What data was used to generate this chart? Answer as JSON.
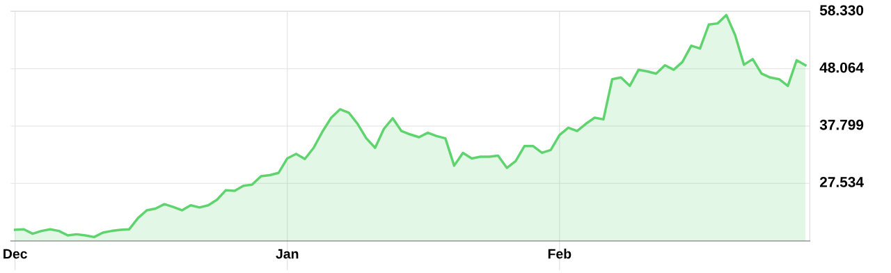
{
  "chart_data": {
    "type": "area",
    "categories": [
      "Dec",
      null,
      null,
      null,
      null,
      null,
      null,
      null,
      null,
      null,
      null,
      null,
      null,
      null,
      null,
      null,
      null,
      null,
      null,
      null,
      null,
      null,
      null,
      null,
      null,
      null,
      null,
      null,
      null,
      null,
      null,
      "Jan",
      null,
      null,
      null,
      null,
      null,
      null,
      null,
      null,
      null,
      null,
      null,
      null,
      null,
      null,
      null,
      null,
      null,
      null,
      null,
      null,
      null,
      null,
      null,
      null,
      null,
      null,
      null,
      null,
      null,
      null,
      "Feb",
      null,
      null,
      null,
      null,
      null,
      null,
      null,
      null,
      null,
      null,
      null,
      null,
      null,
      null,
      null,
      null,
      null,
      null,
      null,
      null,
      null,
      null,
      null,
      null,
      null,
      null,
      null,
      null
    ],
    "series": [
      {
        "color": "#5fd46e",
        "values": [
          19.2,
          19.3,
          18.5,
          19.0,
          19.3,
          19.0,
          18.2,
          18.4,
          18.2,
          17.9,
          18.7,
          19.0,
          19.2,
          19.3,
          21.3,
          22.7,
          23.0,
          23.8,
          23.3,
          22.7,
          23.6,
          23.2,
          23.6,
          24.6,
          26.3,
          26.2,
          27.1,
          27.3,
          28.8,
          29.0,
          29.4,
          32.0,
          32.8,
          31.9,
          33.9,
          36.8,
          39.3,
          40.8,
          40.2,
          38.2,
          35.6,
          33.9,
          37.3,
          39.2,
          36.9,
          36.3,
          35.8,
          36.6,
          36.0,
          35.6,
          30.7,
          33.0,
          32.0,
          32.3,
          32.3,
          32.5,
          30.3,
          31.5,
          34.2,
          34.2,
          33.0,
          33.5,
          36.2,
          37.5,
          36.9,
          38.2,
          39.3,
          39.0,
          46.2,
          46.5,
          45.0,
          47.9,
          47.6,
          47.2,
          48.7,
          47.9,
          49.3,
          52.2,
          51.7,
          56.0,
          56.2,
          57.7,
          54.1,
          48.8,
          49.8,
          47.2,
          46.5,
          46.2,
          45.0,
          49.6,
          48.7
        ]
      }
    ],
    "ylim": [
      17.2,
      58.4
    ],
    "yticks": [
      {
        "value": 27.534,
        "label": "27.534"
      },
      {
        "value": 37.799,
        "label": "37.799"
      },
      {
        "value": 48.064,
        "label": "48.064"
      },
      {
        "value": 58.33,
        "label": "58.330"
      }
    ],
    "grid": true
  }
}
